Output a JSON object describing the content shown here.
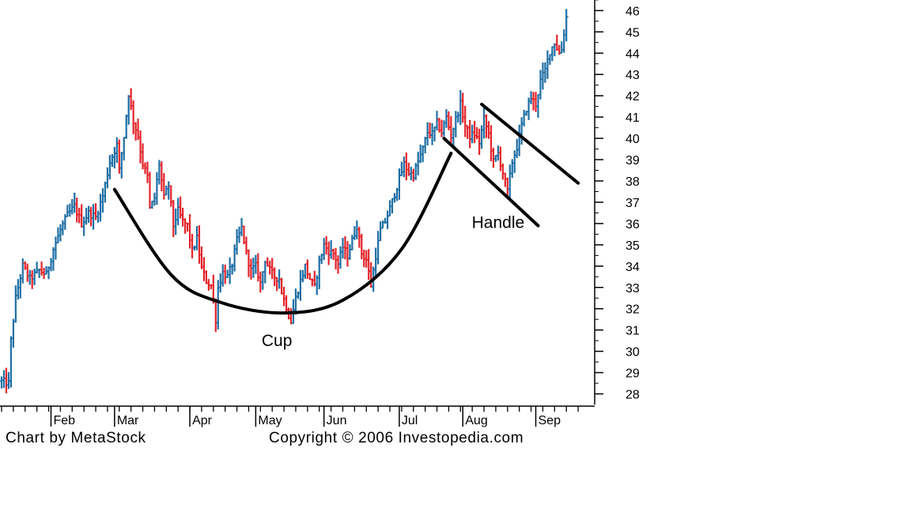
{
  "chart_data": {
    "type": "bar",
    "subtype": "ohlc",
    "title": "",
    "xlabel": "",
    "ylabel": "",
    "ylim": [
      27.5,
      46.2
    ],
    "yticks": [
      28,
      29,
      30,
      31,
      32,
      33,
      34,
      35,
      36,
      37,
      38,
      39,
      40,
      41,
      42,
      43,
      44,
      45,
      46
    ],
    "y_axis_side": "right",
    "grid": false,
    "months": [
      "Feb",
      "Mar",
      "Apr",
      "May",
      "Jun",
      "Jul",
      "Aug",
      "Sep"
    ],
    "bar_colors": {
      "up": "#1f6fa5",
      "down": "#e3242b",
      "pattern_lines": "#000000"
    },
    "path": [
      [
        0,
        28.6
      ],
      [
        3,
        28.5
      ],
      [
        4,
        30.5
      ],
      [
        6,
        32.5
      ],
      [
        9,
        34.0
      ],
      [
        12,
        33.4
      ],
      [
        16,
        33.8
      ],
      [
        19,
        33.6
      ],
      [
        22,
        34.8
      ],
      [
        25,
        35.7
      ],
      [
        28,
        36.4
      ],
      [
        31,
        36.8
      ],
      [
        34,
        36.0
      ],
      [
        37,
        36.5
      ],
      [
        40,
        36.3
      ],
      [
        43,
        37.3
      ],
      [
        46,
        38.9
      ],
      [
        49,
        39.7
      ],
      [
        50,
        38.5
      ],
      [
        52,
        40.1
      ],
      [
        54,
        42.1
      ],
      [
        56,
        40.8
      ],
      [
        58,
        40.1
      ],
      [
        60,
        38.8
      ],
      [
        62,
        38.2
      ],
      [
        63,
        36.7
      ],
      [
        65,
        37.2
      ],
      [
        67,
        38.8
      ],
      [
        69,
        37.2
      ],
      [
        71,
        37.8
      ],
      [
        73,
        35.9
      ],
      [
        75,
        36.6
      ],
      [
        77,
        36.1
      ],
      [
        79,
        35.9
      ],
      [
        81,
        34.7
      ],
      [
        83,
        35.3
      ],
      [
        85,
        33.9
      ],
      [
        87,
        33.3
      ],
      [
        89,
        33.1
      ],
      [
        91,
        31.5
      ],
      [
        92,
        33.0
      ],
      [
        94,
        33.7
      ],
      [
        96,
        33.5
      ],
      [
        98,
        34.1
      ],
      [
        100,
        35.2
      ],
      [
        102,
        35.8
      ],
      [
        104,
        34.6
      ],
      [
        106,
        33.8
      ],
      [
        108,
        34.0
      ],
      [
        110,
        33.2
      ],
      [
        112,
        34.3
      ],
      [
        114,
        33.8
      ],
      [
        116,
        33.5
      ],
      [
        118,
        33.4
      ],
      [
        119,
        32.8
      ],
      [
        121,
        32.1
      ],
      [
        122,
        31.7
      ],
      [
        123,
        31.4
      ],
      [
        125,
        32.5
      ],
      [
        127,
        33.3
      ],
      [
        129,
        34.0
      ],
      [
        131,
        33.4
      ],
      [
        133,
        33.0
      ],
      [
        135,
        34.2
      ],
      [
        137,
        35.0
      ],
      [
        139,
        34.7
      ],
      [
        141,
        34.6
      ],
      [
        143,
        34.1
      ],
      [
        145,
        34.9
      ],
      [
        147,
        34.5
      ],
      [
        149,
        35.2
      ],
      [
        151,
        35.9
      ],
      [
        153,
        34.6
      ],
      [
        155,
        34.3
      ],
      [
        157,
        33.1
      ],
      [
        159,
        34.5
      ],
      [
        161,
        35.7
      ],
      [
        163,
        36.1
      ],
      [
        165,
        36.7
      ],
      [
        167,
        37.4
      ],
      [
        169,
        38.1
      ],
      [
        171,
        38.8
      ],
      [
        173,
        38.4
      ],
      [
        175,
        38.3
      ],
      [
        177,
        38.9
      ],
      [
        179,
        39.5
      ],
      [
        181,
        40.3
      ],
      [
        183,
        40.2
      ],
      [
        185,
        40.7
      ],
      [
        187,
        40.3
      ],
      [
        189,
        41.0
      ],
      [
        191,
        40.1
      ],
      [
        193,
        40.9
      ],
      [
        195,
        41.6
      ],
      [
        197,
        40.6
      ],
      [
        199,
        40.1
      ],
      [
        201,
        40.2
      ],
      [
        203,
        39.8
      ],
      [
        205,
        40.9
      ],
      [
        207,
        40.2
      ],
      [
        209,
        38.9
      ],
      [
        211,
        39.3
      ],
      [
        213,
        38.4
      ],
      [
        215,
        37.5
      ],
      [
        217,
        38.9
      ],
      [
        219,
        39.6
      ],
      [
        221,
        40.6
      ],
      [
        223,
        41.4
      ],
      [
        225,
        41.9
      ],
      [
        227,
        41.6
      ],
      [
        229,
        42.7
      ],
      [
        231,
        43.2
      ],
      [
        233,
        44.1
      ],
      [
        235,
        44.5
      ],
      [
        237,
        44.0
      ],
      [
        238,
        44.2
      ],
      [
        240,
        45.7
      ]
    ],
    "x_domain": [
      0,
      248
    ],
    "month_positions": [
      21,
      48,
      80,
      108,
      137,
      169,
      196,
      227
    ],
    "annotations": [
      {
        "text": "Cup",
        "x": 117,
        "y": 30.25
      },
      {
        "text": "Handle",
        "x": 211,
        "y": 35.8
      }
    ],
    "cup_curve": [
      [
        48,
        37.6
      ],
      [
        72,
        33.6
      ],
      [
        93,
        32.3
      ],
      [
        120,
        31.8
      ],
      [
        145,
        32.4
      ],
      [
        170,
        34.8
      ],
      [
        191,
        39.3
      ]
    ],
    "handle_upper": [
      [
        204,
        41.6
      ],
      [
        245,
        37.9
      ]
    ],
    "handle_lower": [
      [
        188,
        40.0
      ],
      [
        228,
        35.9
      ]
    ],
    "credits": {
      "left": "Chart by MetaStock",
      "right": "Copyright © 2006 Investopedia.com"
    }
  }
}
